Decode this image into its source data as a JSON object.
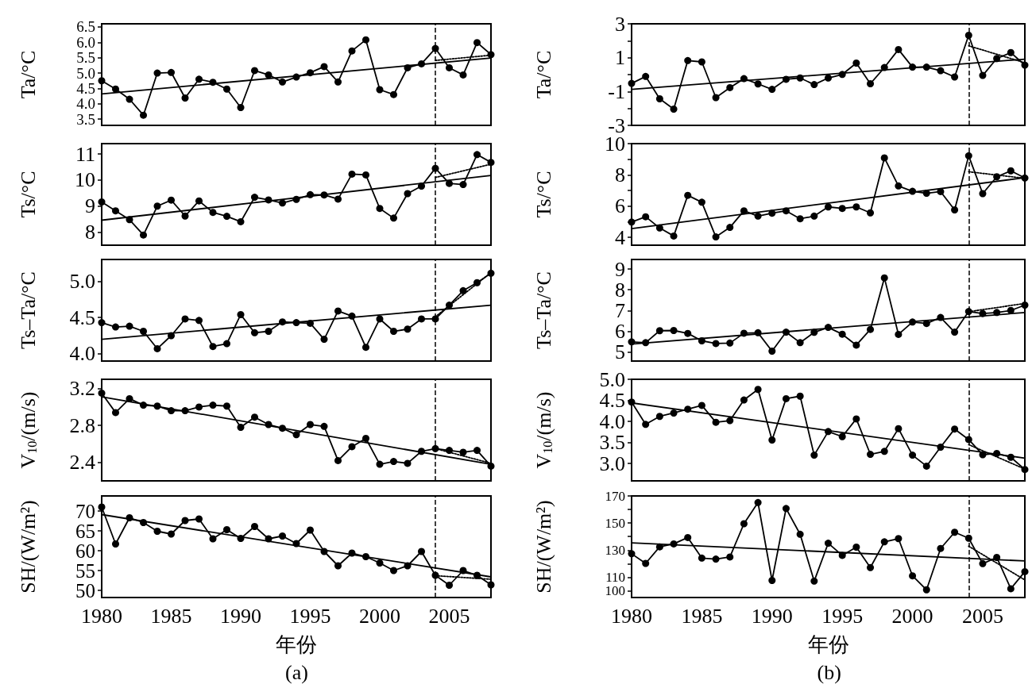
{
  "chart_data": [
    {
      "type": "line",
      "ylabel": "Ta/°C",
      "x": [
        1980,
        1981,
        1982,
        1983,
        1984,
        1985,
        1986,
        1987,
        1988,
        1989,
        1990,
        1991,
        1992,
        1993,
        1994,
        1995,
        1996,
        1997,
        1998,
        1999,
        2000,
        2001,
        2002,
        2003,
        2004,
        2005,
        2006,
        2007,
        2008
      ],
      "xlim": [
        1980,
        2008
      ],
      "xticks": [
        1980,
        1985,
        1990,
        1995,
        2000,
        2005
      ],
      "ylim": [
        3.3,
        6.6
      ],
      "yticks": [
        {
          "value": 3.5,
          "label": "3.5"
        },
        {
          "value": 4,
          "label": "4.0"
        },
        {
          "value": 4.5,
          "label": "4.5"
        },
        {
          "value": 5,
          "label": "5.0"
        },
        {
          "value": 5.5,
          "label": "5.5"
        },
        {
          "value": 6,
          "label": "6.0"
        },
        {
          "value": 6.5,
          "label": "6.5"
        }
      ],
      "tick_labels": "y",
      "ref_lines": [
        {
          "axis": "x",
          "value": 2004,
          "line_style": "dashed",
          "color": "#000000"
        }
      ],
      "series": [
        {
          "color": "#000000",
          "marker": "circle",
          "values": [
            4.75,
            4.48,
            4.15,
            3.63,
            5.0,
            5.02,
            4.19,
            4.8,
            4.7,
            4.48,
            3.88,
            5.08,
            4.94,
            4.71,
            4.87,
            5.01,
            5.21,
            4.71,
            5.72,
            6.08,
            4.46,
            4.3,
            5.17,
            5.3,
            5.8,
            5.17,
            4.94,
            5.99,
            5.6
          ]
        },
        {
          "type": "line",
          "color": "#000000",
          "marker": "none",
          "x": [
            1980,
            2008
          ],
          "values": [
            4.32,
            5.49
          ]
        },
        {
          "type": "line",
          "color": "#000000",
          "marker": "none",
          "line_style": "dotted",
          "x": [
            2004,
            2008
          ],
          "values": [
            5.41,
            5.58
          ]
        }
      ]
    },
    {
      "type": "line",
      "ylabel": "Ts/°C",
      "x": [
        1980,
        1981,
        1982,
        1983,
        1984,
        1985,
        1986,
        1987,
        1988,
        1989,
        1990,
        1991,
        1992,
        1993,
        1994,
        1995,
        1996,
        1997,
        1998,
        1999,
        2000,
        2001,
        2002,
        2003,
        2004,
        2005,
        2006,
        2007,
        2008
      ],
      "xlim": [
        1980,
        2008
      ],
      "xticks": [
        1980,
        1985,
        1990,
        1995,
        2000,
        2005
      ],
      "ylim": [
        7.5,
        11.4
      ],
      "yticks": [
        8,
        9,
        10,
        11
      ],
      "tick_labels": "y",
      "ref_lines": [
        {
          "axis": "x",
          "value": 2004,
          "line_style": "dashed",
          "color": "#000000"
        }
      ],
      "series": [
        {
          "color": "#000000",
          "marker": "circle",
          "values": [
            9.16,
            8.82,
            8.48,
            7.89,
            9.0,
            9.23,
            8.62,
            9.2,
            8.76,
            8.61,
            8.4,
            9.34,
            9.24,
            9.12,
            9.26,
            9.44,
            9.43,
            9.27,
            10.23,
            10.2,
            8.91,
            8.54,
            9.48,
            9.77,
            10.45,
            9.87,
            9.83,
            10.98,
            10.68
          ]
        },
        {
          "type": "line",
          "color": "#000000",
          "marker": "none",
          "x": [
            1980,
            2008
          ],
          "values": [
            8.46,
            10.18
          ]
        },
        {
          "type": "line",
          "color": "#000000",
          "marker": "none",
          "line_style": "dotted",
          "x": [
            2004,
            2008
          ],
          "values": [
            10.1,
            10.61
          ]
        }
      ]
    },
    {
      "type": "line",
      "ylabel": "Ts–Ta/°C",
      "x": [
        1980,
        1981,
        1982,
        1983,
        1984,
        1985,
        1986,
        1987,
        1988,
        1989,
        1990,
        1991,
        1992,
        1993,
        1994,
        1995,
        1996,
        1997,
        1998,
        1999,
        2000,
        2001,
        2002,
        2003,
        2004,
        2005,
        2006,
        2007,
        2008
      ],
      "xlim": [
        1980,
        2008
      ],
      "xticks": [
        1980,
        1985,
        1990,
        1995,
        2000,
        2005
      ],
      "ylim": [
        3.9,
        5.3
      ],
      "yticks": [
        {
          "value": 4,
          "label": "4.0"
        },
        {
          "value": 4.5,
          "label": "4.5"
        },
        {
          "value": 5,
          "label": "5.0"
        }
      ],
      "tick_labels": "y",
      "ref_lines": [
        {
          "axis": "x",
          "value": 2004,
          "line_style": "dashed",
          "color": "#000000"
        }
      ],
      "series": [
        {
          "color": "#000000",
          "marker": "circle",
          "values": [
            4.43,
            4.37,
            4.38,
            4.31,
            4.07,
            4.25,
            4.48,
            4.46,
            4.1,
            4.14,
            4.54,
            4.29,
            4.31,
            4.44,
            4.43,
            4.42,
            4.2,
            4.59,
            4.52,
            4.09,
            4.48,
            4.31,
            4.34,
            4.48,
            4.48,
            4.67,
            4.87,
            4.98,
            5.11
          ]
        },
        {
          "type": "line",
          "color": "#000000",
          "marker": "none",
          "x": [
            1980,
            2008
          ],
          "values": [
            4.2,
            4.67
          ]
        },
        {
          "type": "line",
          "color": "#000000",
          "marker": "none",
          "line_style": "dotted",
          "x": [
            2004,
            2008
          ],
          "values": [
            4.51,
            5.12
          ]
        }
      ]
    },
    {
      "type": "line",
      "ylabel": "V$_{10}$/(m/s)",
      "x": [
        1980,
        1981,
        1982,
        1983,
        1984,
        1985,
        1986,
        1987,
        1988,
        1989,
        1990,
        1991,
        1992,
        1993,
        1994,
        1995,
        1996,
        1997,
        1998,
        1999,
        2000,
        2001,
        2002,
        2003,
        2004,
        2005,
        2006,
        2007,
        2008
      ],
      "xlim": [
        1980,
        2008
      ],
      "xticks": [
        1980,
        1985,
        1990,
        1995,
        2000,
        2005
      ],
      "ylim": [
        2.2,
        3.3
      ],
      "yticks": [
        2.4,
        2.8,
        3.2
      ],
      "tick_labels": "y",
      "ref_lines": [
        {
          "axis": "x",
          "value": 2004,
          "line_style": "dashed",
          "color": "#000000"
        }
      ],
      "series": [
        {
          "color": "#000000",
          "marker": "circle",
          "values": [
            3.15,
            2.94,
            3.09,
            3.02,
            3.01,
            2.96,
            2.96,
            3.0,
            3.02,
            3.01,
            2.78,
            2.89,
            2.81,
            2.77,
            2.7,
            2.81,
            2.79,
            2.42,
            2.57,
            2.66,
            2.38,
            2.41,
            2.39,
            2.52,
            2.55,
            2.53,
            2.51,
            2.53,
            2.36
          ]
        },
        {
          "type": "line",
          "color": "#000000",
          "marker": "none",
          "x": [
            1980,
            2008
          ],
          "values": [
            3.11,
            2.38
          ]
        },
        {
          "type": "line",
          "color": "#000000",
          "marker": "none",
          "line_style": "dotted",
          "x": [
            2004,
            2008
          ],
          "values": [
            2.55,
            2.39
          ]
        }
      ]
    },
    {
      "type": "line",
      "ylabel": "SH/(W/m²)",
      "xlabel": "年份",
      "annotations": [
        "(a)"
      ],
      "x": [
        1980,
        1981,
        1982,
        1983,
        1984,
        1985,
        1986,
        1987,
        1988,
        1989,
        1990,
        1991,
        1992,
        1993,
        1994,
        1995,
        1996,
        1997,
        1998,
        1999,
        2000,
        2001,
        2002,
        2003,
        2004,
        2005,
        2006,
        2007,
        2008
      ],
      "xlim": [
        1980,
        2008
      ],
      "xticks": [
        1980,
        1985,
        1990,
        1995,
        2000,
        2005
      ],
      "ylim": [
        48.2,
        73.8
      ],
      "yticks": [
        50,
        55,
        60,
        65,
        70
      ],
      "ref_lines": [
        {
          "axis": "x",
          "value": 2004,
          "line_style": "dashed",
          "color": "#000000"
        }
      ],
      "series": [
        {
          "color": "#000000",
          "marker": "circle",
          "values": [
            71.0,
            61.7,
            68.3,
            67.1,
            64.9,
            64.2,
            67.6,
            68.0,
            63.0,
            65.3,
            63.1,
            66.1,
            63.0,
            63.7,
            61.8,
            65.2,
            59.8,
            56.2,
            59.4,
            58.5,
            56.9,
            55.0,
            56.2,
            59.8,
            53.8,
            51.3,
            55.0,
            53.8,
            51.4
          ]
        },
        {
          "type": "line",
          "color": "#000000",
          "marker": "none",
          "x": [
            1980,
            2008
          ],
          "values": [
            69.1,
            53.4
          ]
        },
        {
          "type": "line",
          "color": "#000000",
          "marker": "none",
          "line_style": "dotted",
          "x": [
            2004,
            2008
          ],
          "values": [
            53.7,
            52.8
          ]
        }
      ]
    },
    {
      "type": "line",
      "ylabel": "Ta/°C",
      "x": [
        1980,
        1981,
        1982,
        1983,
        1984,
        1985,
        1986,
        1987,
        1988,
        1989,
        1990,
        1991,
        1992,
        1993,
        1994,
        1995,
        1996,
        1997,
        1998,
        1999,
        2000,
        2001,
        2002,
        2003,
        2004,
        2005,
        2006,
        2007,
        2008
      ],
      "xlim": [
        1980,
        2008
      ],
      "xticks": [
        1980,
        1985,
        1990,
        1995,
        2000,
        2005
      ],
      "ylim": [
        -3,
        3
      ],
      "yticks": [
        -3,
        {
          "value": -2,
          "label": null
        },
        -1,
        {
          "value": 0,
          "label": null
        },
        1,
        {
          "value": 2,
          "label": null
        },
        3
      ],
      "tick_labels": "y",
      "ref_lines": [
        {
          "axis": "x",
          "value": 2004,
          "line_style": "dashed",
          "color": "#000000"
        }
      ],
      "series": [
        {
          "color": "#000000",
          "marker": "circle",
          "values": [
            -0.52,
            -0.11,
            -1.43,
            -2.04,
            0.83,
            0.75,
            -1.36,
            -0.77,
            -0.24,
            -0.55,
            -0.87,
            -0.28,
            -0.2,
            -0.59,
            -0.2,
            0.01,
            0.68,
            -0.54,
            0.42,
            1.48,
            0.44,
            0.44,
            0.23,
            -0.14,
            2.32,
            -0.05,
            0.95,
            1.3,
            0.56
          ]
        },
        {
          "type": "line",
          "color": "#000000",
          "marker": "none",
          "x": [
            1980,
            2008
          ],
          "values": [
            -0.87,
            0.91
          ]
        },
        {
          "type": "line",
          "color": "#000000",
          "marker": "none",
          "line_style": "dotted",
          "x": [
            2004,
            2008
          ],
          "values": [
            1.7,
            0.7
          ]
        }
      ]
    },
    {
      "type": "line",
      "ylabel": "Ts/°C",
      "x": [
        1980,
        1981,
        1982,
        1983,
        1984,
        1985,
        1986,
        1987,
        1988,
        1989,
        1990,
        1991,
        1992,
        1993,
        1994,
        1995,
        1996,
        1997,
        1998,
        1999,
        2000,
        2001,
        2002,
        2003,
        2004,
        2005,
        2006,
        2007,
        2008
      ],
      "xlim": [
        1980,
        2008
      ],
      "xticks": [
        1980,
        1985,
        1990,
        1995,
        2000,
        2005
      ],
      "ylim": [
        3.5,
        10
      ],
      "yticks": [
        4,
        {
          "value": 5,
          "label": null
        },
        6,
        {
          "value": 7,
          "label": null
        },
        8,
        {
          "value": 9,
          "label": null
        },
        10
      ],
      "tick_labels": "y",
      "ref_lines": [
        {
          "axis": "x",
          "value": 2004,
          "line_style": "dashed",
          "color": "#000000"
        }
      ],
      "series": [
        {
          "color": "#000000",
          "marker": "circle",
          "values": [
            4.98,
            5.32,
            4.6,
            4.09,
            6.69,
            6.25,
            4.03,
            4.64,
            5.7,
            5.36,
            5.55,
            5.7,
            5.19,
            5.36,
            5.95,
            5.85,
            5.95,
            5.57,
            9.09,
            7.29,
            6.95,
            6.82,
            6.93,
            5.76,
            9.22,
            6.8,
            7.88,
            8.26,
            7.8
          ]
        },
        {
          "type": "line",
          "color": "#000000",
          "x": [
            1980,
            2008
          ],
          "values": [
            4.56,
            7.82
          ]
        },
        {
          "type": "line",
          "color": "#000000",
          "marker": "none",
          "line_style": "dotted",
          "x": [
            2004,
            2008
          ],
          "values": [
            8.2,
            7.78
          ]
        }
      ]
    },
    {
      "type": "line",
      "ylabel": "Ts–Ta/°C",
      "x": [
        1980,
        1981,
        1982,
        1983,
        1984,
        1985,
        1986,
        1987,
        1988,
        1989,
        1990,
        1991,
        1992,
        1993,
        1994,
        1995,
        1996,
        1997,
        1998,
        1999,
        2000,
        2001,
        2002,
        2003,
        2004,
        2005,
        2006,
        2007,
        2008
      ],
      "xlim": [
        1980,
        2008
      ],
      "xticks": [
        1980,
        1985,
        1990,
        1995,
        2000,
        2005
      ],
      "ylim": [
        4.55,
        9.47
      ],
      "yticks": [
        5,
        6,
        7,
        8,
        9
      ],
      "tick_labels": "y",
      "ref_lines": [
        {
          "axis": "x",
          "value": 2004,
          "line_style": "dashed",
          "color": "#000000"
        }
      ],
      "series": [
        {
          "color": "#000000",
          "marker": "circle",
          "values": [
            5.48,
            5.44,
            6.02,
            6.03,
            5.89,
            5.53,
            5.4,
            5.42,
            5.9,
            5.92,
            5.03,
            5.95,
            5.44,
            5.94,
            6.18,
            5.85,
            5.32,
            6.08,
            8.58,
            5.84,
            6.44,
            6.37,
            6.66,
            5.95,
            6.95,
            6.85,
            6.9,
            7.0,
            7.26
          ]
        },
        {
          "type": "line",
          "color": "#000000",
          "marker": "none",
          "x": [
            1980,
            2008
          ],
          "values": [
            5.37,
            6.9
          ]
        },
        {
          "type": "line",
          "color": "#000000",
          "marker": "none",
          "line_style": "dotted",
          "x": [
            2004,
            2008
          ],
          "values": [
            6.94,
            7.34
          ]
        }
      ]
    },
    {
      "type": "line",
      "ylabel": "V$_{10}$/(m/s)",
      "x": [
        1980,
        1981,
        1982,
        1983,
        1984,
        1985,
        1986,
        1987,
        1988,
        1989,
        1990,
        1991,
        1992,
        1993,
        1994,
        1995,
        1996,
        1997,
        1998,
        1999,
        2000,
        2001,
        2002,
        2003,
        2004,
        2005,
        2006,
        2007,
        2008
      ],
      "xlim": [
        1980,
        2008
      ],
      "xticks": [
        1980,
        1985,
        1990,
        1995,
        2000,
        2005
      ],
      "ylim": [
        2.59,
        5
      ],
      "yticks": [
        {
          "value": 3,
          "label": "3.0"
        },
        {
          "value": 3.5,
          "label": "3.5"
        },
        {
          "value": 4,
          "label": "4.0"
        },
        {
          "value": 4.5,
          "label": "4.5"
        },
        {
          "value": 5,
          "label": "5.0"
        }
      ],
      "tick_labels": "y",
      "ref_lines": [
        {
          "axis": "x",
          "value": 2004,
          "line_style": "dashed",
          "color": "#000000"
        }
      ],
      "series": [
        {
          "color": "#000000",
          "marker": "circle",
          "values": [
            4.46,
            3.93,
            4.12,
            4.2,
            4.29,
            4.38,
            3.98,
            4.02,
            4.51,
            4.76,
            3.56,
            4.54,
            4.6,
            3.2,
            3.76,
            3.64,
            4.06,
            3.22,
            3.29,
            3.83,
            3.2,
            2.94,
            3.39,
            3.82,
            3.57,
            3.21,
            3.24,
            3.15,
            2.86
          ]
        },
        {
          "type": "line",
          "color": "#000000",
          "marker": "none",
          "x": [
            1980,
            2008
          ],
          "values": [
            4.44,
            3.13
          ]
        },
        {
          "type": "line",
          "color": "#000000",
          "marker": "none",
          "line_style": "dotted",
          "x": [
            2004,
            2008
          ],
          "values": [
            3.45,
            2.87
          ]
        }
      ]
    },
    {
      "type": "line",
      "ylabel": "SH/(W/m²)",
      "xlabel": "年份",
      "annotations": [
        "(b)"
      ],
      "x": [
        1980,
        1981,
        1982,
        1983,
        1984,
        1985,
        1986,
        1987,
        1988,
        1989,
        1990,
        1991,
        1992,
        1993,
        1994,
        1995,
        1996,
        1997,
        1998,
        1999,
        2000,
        2001,
        2002,
        2003,
        2004,
        2005,
        2006,
        2007,
        2008
      ],
      "xlim": [
        1980,
        2008
      ],
      "xticks": [
        1980,
        1985,
        1990,
        1995,
        2000,
        2005
      ],
      "ylim": [
        95,
        170
      ],
      "yticks": [
        100,
        110,
        {
          "value": 120,
          "label": null
        },
        130,
        {
          "value": 140,
          "label": null
        },
        150,
        {
          "value": 160,
          "label": null
        },
        170
      ],
      "ref_lines": [
        {
          "axis": "x",
          "value": 2004,
          "line_style": "dashed",
          "color": "#000000"
        }
      ],
      "series": [
        {
          "color": "#000000",
          "marker": "circle",
          "values": [
            127.3,
            120.2,
            132.4,
            134.6,
            139.3,
            124.1,
            123.4,
            124.9,
            149.5,
            165.1,
            107.6,
            160.7,
            141.7,
            107.1,
            135.1,
            126.1,
            132.2,
            117.1,
            136.1,
            138.5,
            111.0,
            100.7,
            131.2,
            143.2,
            138.8,
            120.0,
            124.6,
            101.5,
            114.1
          ]
        },
        {
          "type": "line",
          "color": "#000000",
          "marker": "none",
          "x": [
            1980,
            2008
          ],
          "values": [
            135.4,
            122.0
          ]
        },
        {
          "type": "line",
          "color": "#000000",
          "marker": "none",
          "line_style": "dotted",
          "x": [
            2004,
            2008
          ],
          "values": [
            132.9,
            108.0
          ]
        }
      ]
    }
  ]
}
